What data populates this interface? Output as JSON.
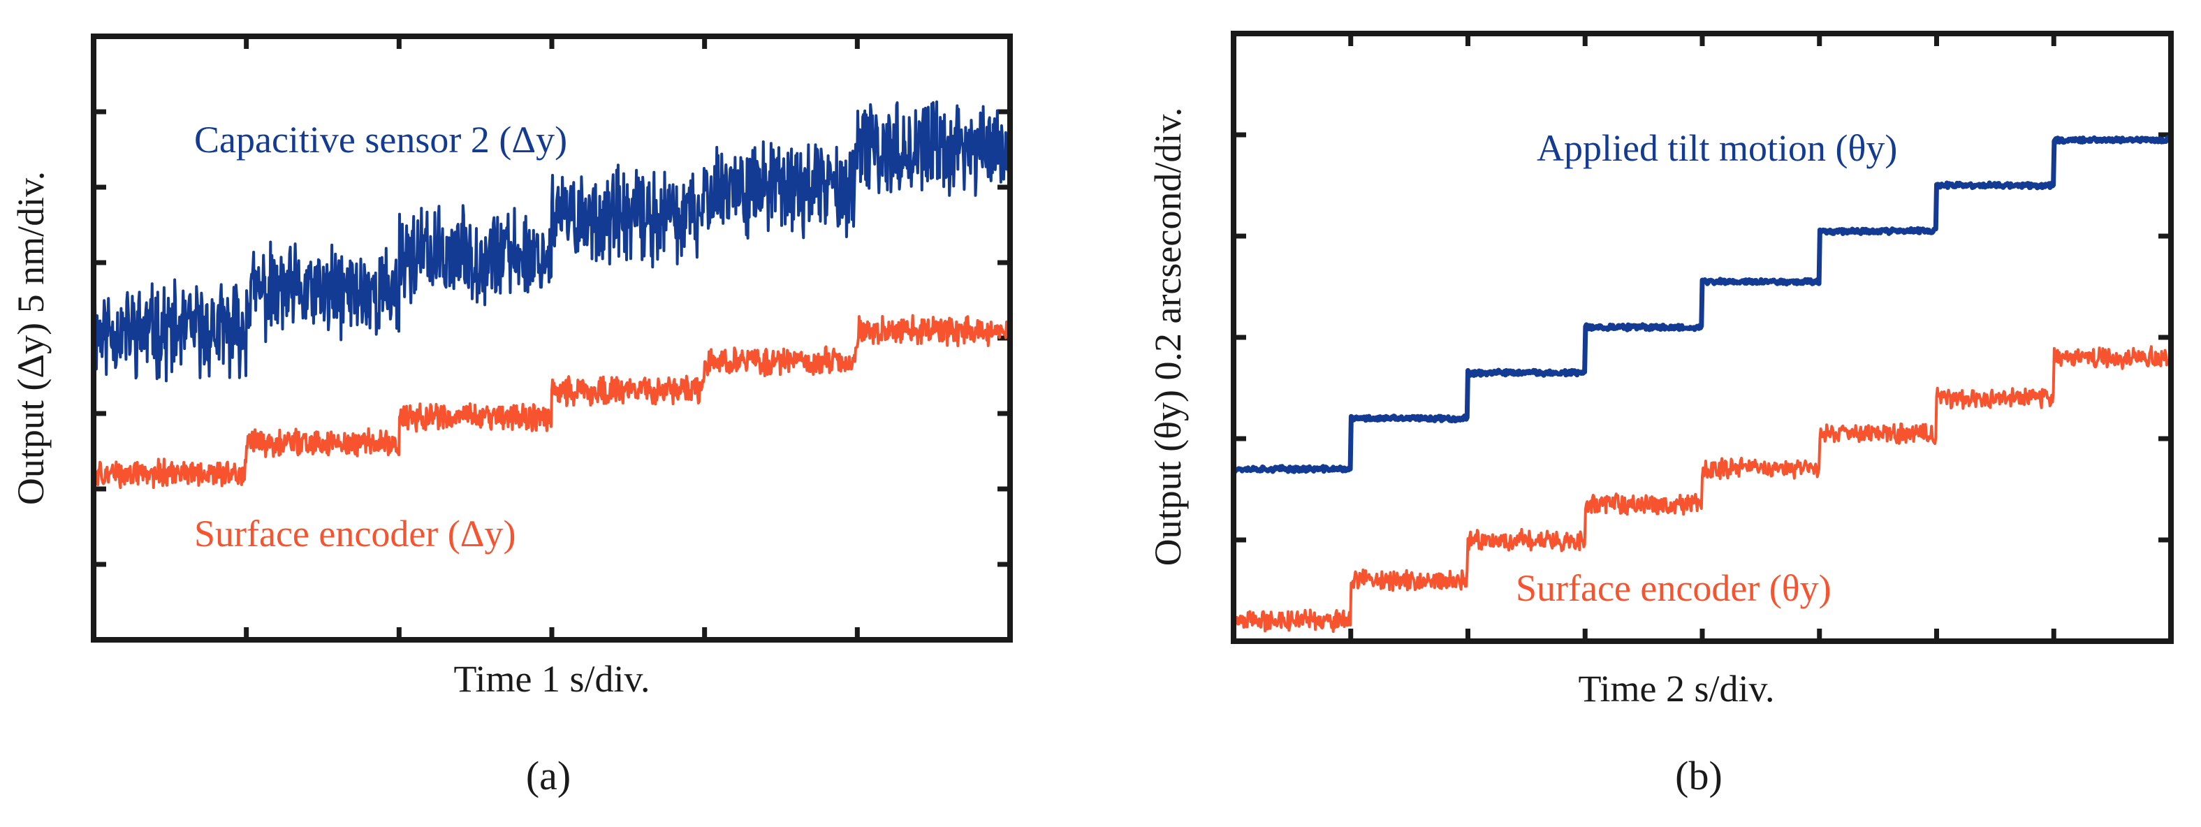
{
  "colors": {
    "blue_series": "#133b93",
    "red_series": "#f6532e",
    "frame": "#1a1a1a",
    "text": "#1a1a1a"
  },
  "panels": [
    {
      "caption": "(a)"
    },
    {
      "caption": "(b)"
    }
  ],
  "chart_data": [
    {
      "type": "line",
      "panel": "(a)",
      "title": "",
      "xlabel": "Time 1 s/div.",
      "ylabel": "Output (Δy) 5 nm/div.",
      "xlim": [
        0,
        6
      ],
      "ylim": [
        0,
        8
      ],
      "x_divisions": 6,
      "y_divisions": 8,
      "tick_labels": "none",
      "grid": false,
      "legend": "inline annotations",
      "series": [
        {
          "name": "Capacitive sensor 2 (Δy)",
          "color": "#133b93",
          "noise_pp": 1.0,
          "x": [
            0,
            1,
            1.0,
            2,
            2.0,
            3,
            3.0,
            4,
            4.0,
            5,
            5.0,
            6
          ],
          "y": [
            4.1,
            4.1,
            4.6,
            4.6,
            5.1,
            5.1,
            5.6,
            5.6,
            6.0,
            6.0,
            6.5,
            6.5
          ]
        },
        {
          "name": "Surface encoder (Δy)",
          "color": "#f6532e",
          "noise_pp": 0.3,
          "x": [
            0,
            1,
            1.0,
            2,
            2.0,
            3,
            3.0,
            4,
            4.0,
            5,
            5.0,
            6
          ],
          "y": [
            2.2,
            2.2,
            2.6,
            2.6,
            2.95,
            2.95,
            3.3,
            3.3,
            3.7,
            3.7,
            4.1,
            4.1
          ]
        }
      ]
    },
    {
      "type": "line",
      "panel": "(b)",
      "title": "",
      "xlabel": "Time 2 s/div.",
      "ylabel": "Output (θy) 0.2 arcsecond/div.",
      "xlim": [
        0,
        8
      ],
      "ylim": [
        0,
        6
      ],
      "x_divisions": 8,
      "y_divisions": 6,
      "tick_labels": "none",
      "grid": false,
      "legend": "inline annotations",
      "series": [
        {
          "name": "Applied tilt motion (θy)",
          "color": "#133b93",
          "noise_pp": 0.04,
          "x": [
            0,
            1,
            1,
            2,
            2,
            3,
            3,
            4,
            4,
            5,
            5,
            6,
            6,
            7,
            7,
            8
          ],
          "y": [
            1.7,
            1.7,
            2.2,
            2.2,
            2.65,
            2.65,
            3.1,
            3.1,
            3.55,
            3.55,
            4.05,
            4.05,
            4.5,
            4.5,
            4.95,
            4.95
          ]
        },
        {
          "name": "Surface encoder (θy)",
          "color": "#f6532e",
          "noise_pp": 0.16,
          "x": [
            0,
            1,
            1,
            2,
            2,
            3,
            3,
            4,
            4,
            5,
            5,
            6,
            6,
            7,
            7,
            8
          ],
          "y": [
            0.2,
            0.2,
            0.6,
            0.6,
            1.0,
            1.0,
            1.35,
            1.35,
            1.7,
            1.7,
            2.05,
            2.05,
            2.4,
            2.4,
            2.8,
            2.8
          ]
        }
      ]
    }
  ]
}
